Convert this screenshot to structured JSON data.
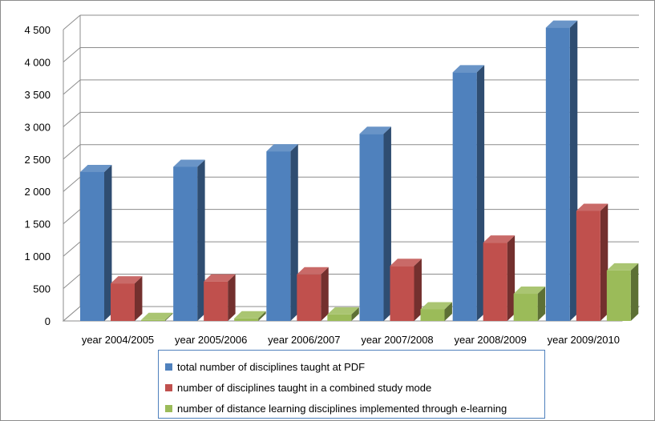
{
  "chart_data": {
    "type": "bar",
    "title": "",
    "xlabel": "",
    "ylabel": "",
    "ylim": [
      0,
      4500
    ],
    "yticks": [
      0,
      500,
      1000,
      1500,
      2000,
      2500,
      3000,
      3500,
      4000,
      4500
    ],
    "ytick_labels": [
      "0",
      "500",
      "1 000",
      "1 500",
      "2 000",
      "2 500",
      "3 000",
      "3 500",
      "4 000",
      "4 500"
    ],
    "grid": true,
    "style": "3d-clustered-column",
    "legend_position": "bottom",
    "categories": [
      "year 2004/2005",
      "year 2005/2006",
      "year 2006/2007",
      "year 2007/2008",
      "year 2008/2009",
      "year 2009/2010"
    ],
    "series": [
      {
        "name": "total number of disciplines taught at PDF",
        "color": "#4f81bd",
        "values": [
          2300,
          2380,
          2620,
          2890,
          3840,
          4530
        ]
      },
      {
        "name": "number of disciplines taught in a combined study mode",
        "color": "#c0504d",
        "values": [
          580,
          610,
          720,
          850,
          1210,
          1700
        ]
      },
      {
        "name": "number of distance learning disciplines implemented through  e-learning",
        "color": "#9bbb59",
        "values": [
          15,
          40,
          100,
          180,
          420,
          780
        ]
      }
    ]
  }
}
